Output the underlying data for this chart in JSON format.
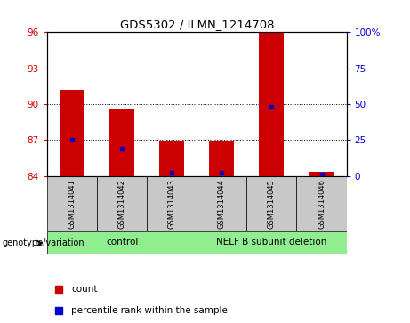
{
  "title": "GDS5302 / ILMN_1214708",
  "samples": [
    "GSM1314041",
    "GSM1314042",
    "GSM1314043",
    "GSM1314044",
    "GSM1314045",
    "GSM1314046"
  ],
  "count_values": [
    91.2,
    89.6,
    86.9,
    86.9,
    96.0,
    84.35
  ],
  "percentile_values": [
    25.5,
    19.0,
    2.5,
    2.5,
    48.0,
    1.0
  ],
  "baseline": 84,
  "left_yticks": [
    84,
    87,
    90,
    93,
    96
  ],
  "right_yticks": [
    0,
    25,
    50,
    75,
    100
  ],
  "ylim_left": [
    84,
    96
  ],
  "ylim_right": [
    0,
    100
  ],
  "bar_color": "#cc0000",
  "percentile_color": "#0000cc",
  "group_labels": [
    "control",
    "NELF B subunit deletion"
  ],
  "group_colors": [
    "#90ee90",
    "#90ee90"
  ],
  "sample_label_color": "#c8c8c8",
  "legend_count_label": "count",
  "legend_percentile_label": "percentile rank within the sample",
  "genotype_label": "genotype/variation",
  "bar_width": 0.5,
  "grid_yticks": [
    87,
    90,
    93
  ]
}
